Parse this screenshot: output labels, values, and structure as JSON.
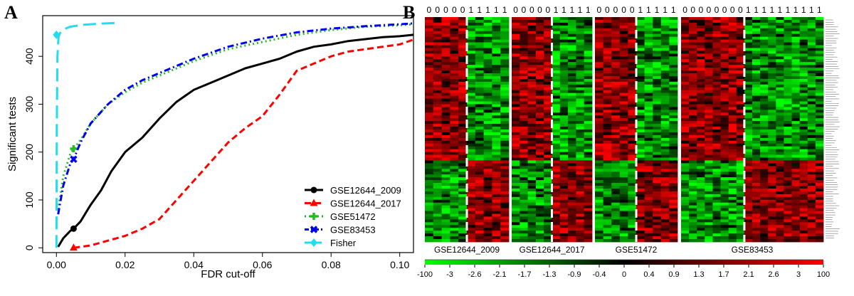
{
  "panel_a_letter": "A",
  "panel_b_letter": "B",
  "chart_data": [
    {
      "type": "line",
      "xlabel": "FDR cut-off",
      "ylabel": "Significant tests",
      "xlim": [
        -0.004,
        0.104
      ],
      "ylim": [
        -10,
        485
      ],
      "xticks": [
        "0.00",
        "0.02",
        "0.04",
        "0.06",
        "0.08",
        "0.10"
      ],
      "xtick_values": [
        0,
        0.02,
        0.04,
        0.06,
        0.08,
        0.1
      ],
      "yticks": [
        "0",
        "100",
        "200",
        "300",
        "400"
      ],
      "ytick_values": [
        0,
        100,
        200,
        300,
        400
      ],
      "legend_position": "bottom-right",
      "series": [
        {
          "name": "GSE12644_2009",
          "color": "#000000",
          "dash": "solid",
          "marker": "circle",
          "marker_point": [
            0.005,
            40
          ],
          "x": [
            0.0005,
            0.002,
            0.004,
            0.005,
            0.007,
            0.01,
            0.013,
            0.016,
            0.02,
            0.025,
            0.03,
            0.035,
            0.04,
            0.045,
            0.05,
            0.055,
            0.06,
            0.065,
            0.07,
            0.075,
            0.08,
            0.085,
            0.09,
            0.095,
            0.1,
            0.104
          ],
          "y": [
            2,
            20,
            35,
            40,
            55,
            90,
            120,
            160,
            200,
            230,
            270,
            305,
            330,
            345,
            360,
            375,
            385,
            395,
            410,
            420,
            425,
            432,
            436,
            440,
            442,
            445
          ]
        },
        {
          "name": "GSE12644_2017",
          "color": "#ff0000",
          "dash": "dashed",
          "marker": "triangle",
          "marker_point": [
            0.005,
            0
          ],
          "x": [
            0.005,
            0.01,
            0.015,
            0.02,
            0.025,
            0.03,
            0.035,
            0.04,
            0.045,
            0.05,
            0.055,
            0.06,
            0.065,
            0.07,
            0.075,
            0.08,
            0.085,
            0.09,
            0.095,
            0.1,
            0.104
          ],
          "y": [
            0,
            5,
            15,
            25,
            40,
            60,
            100,
            140,
            180,
            220,
            250,
            275,
            320,
            370,
            385,
            400,
            410,
            415,
            420,
            425,
            435
          ]
        },
        {
          "name": "GSE51472",
          "color": "#22bb22",
          "dash": "dotted",
          "marker": "plus",
          "marker_point": [
            0.005,
            207
          ],
          "x": [
            0.0005,
            0.002,
            0.004,
            0.005,
            0.007,
            0.01,
            0.015,
            0.02,
            0.025,
            0.03,
            0.04,
            0.05,
            0.06,
            0.07,
            0.08,
            0.09,
            0.1,
            0.104
          ],
          "y": [
            80,
            150,
            195,
            207,
            225,
            260,
            300,
            325,
            345,
            360,
            390,
            415,
            430,
            445,
            455,
            462,
            465,
            467
          ]
        },
        {
          "name": "GSE83453",
          "color": "#0000ee",
          "dash": "dashdot",
          "marker": "x",
          "marker_point": [
            0.005,
            185
          ],
          "x": [
            0.0005,
            0.002,
            0.004,
            0.005,
            0.007,
            0.01,
            0.015,
            0.02,
            0.025,
            0.03,
            0.04,
            0.05,
            0.06,
            0.07,
            0.08,
            0.09,
            0.1,
            0.104
          ],
          "y": [
            70,
            130,
            175,
            185,
            220,
            260,
            300,
            330,
            350,
            365,
            395,
            420,
            437,
            450,
            458,
            463,
            467,
            469
          ]
        },
        {
          "name": "Fisher",
          "color": "#22ddee",
          "dash": "longdash",
          "marker": "diamond",
          "marker_point": [
            0.0,
            445
          ],
          "x": [
            0.0,
            0.0001,
            0.0003,
            0.0006,
            0.001,
            0.002,
            0.004,
            0.008,
            0.012,
            0.018
          ],
          "y": [
            0,
            250,
            400,
            440,
            448,
            456,
            462,
            466,
            468,
            470
          ]
        }
      ]
    },
    {
      "type": "heatmap",
      "column_labels": [
        [
          "0",
          "0",
          "0",
          "0",
          "0",
          "1",
          "1",
          "1",
          "1",
          "1"
        ],
        [
          "0",
          "0",
          "0",
          "0",
          "0",
          "1",
          "1",
          "1",
          "1",
          "1"
        ],
        [
          "0",
          "0",
          "0",
          "0",
          "0",
          "1",
          "1",
          "1",
          "1",
          "1"
        ],
        [
          "0",
          "0",
          "0",
          "0",
          "0",
          "0",
          "0",
          "0",
          "1",
          "1",
          "1",
          "1",
          "1",
          "1",
          "1",
          "1",
          "1",
          "1"
        ]
      ],
      "group_labels": [
        "GSE12644_2009",
        "GSE12644_2017",
        "GSE51472",
        "GSE83453"
      ],
      "row_split_fraction": 0.64,
      "colorbar": {
        "ticks": [
          "-100",
          "-3",
          "-2.6",
          "-2.1",
          "-1.7",
          "-1.3",
          "-0.9",
          "-0.4",
          "0",
          "0.4",
          "0.9",
          "1.3",
          "1.7",
          "2.1",
          "2.6",
          "3",
          "100"
        ],
        "low_color": "#00ff00",
        "mid_color": "#000000",
        "high_color": "#ff0000"
      }
    }
  ]
}
